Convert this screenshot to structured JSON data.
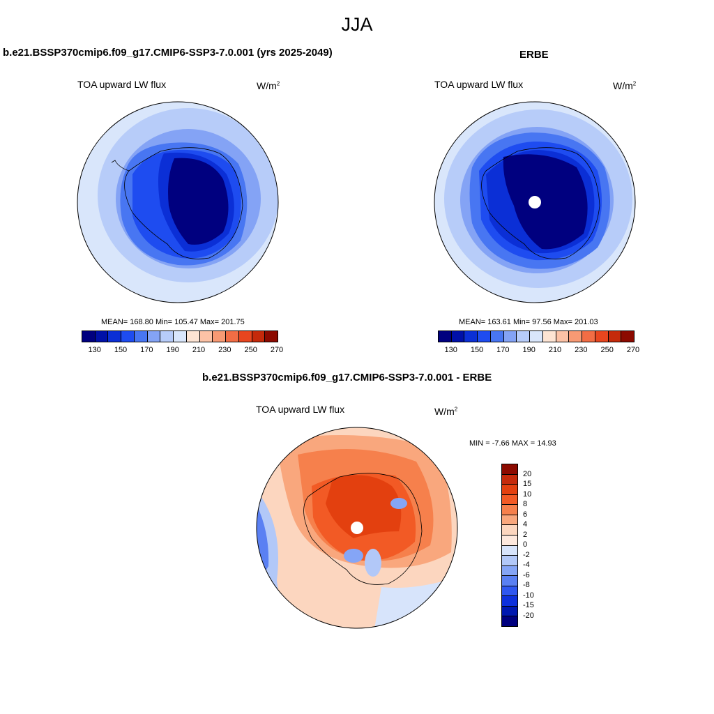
{
  "main_title": "JJA",
  "panels": [
    {
      "title": "b.e21.BSSP370cmip6.f09_g17.CMIP6-SSP3-7.0.001 (yrs 2025-2049)",
      "variable": "TOA upward LW flux",
      "units": "W/m",
      "units_sup": "2",
      "stats": "MEAN= 168.80  Min= 105.47  Max= 201.75"
    },
    {
      "title": "ERBE",
      "variable": "TOA upward LW flux",
      "units": "W/m",
      "units_sup": "2",
      "stats": "MEAN= 163.61  Min=  97.56  Max= 201.03"
    },
    {
      "title": "b.e21.BSSP370cmip6.f09_g17.CMIP6-SSP3-7.0.001 - ERBE",
      "variable": "TOA upward LW flux",
      "units": "W/m",
      "units_sup": "2",
      "stats": "MIN =  -7.66 MAX =  14.93"
    }
  ],
  "abs_colorbar": {
    "colors": [
      "#00007f",
      "#0010a8",
      "#0b2fd6",
      "#1e4cf0",
      "#4876f2",
      "#84a3f5",
      "#b7ccf9",
      "#d9e6fb",
      "#fde4d3",
      "#fcc2a6",
      "#f89a74",
      "#f26d45",
      "#e8461f",
      "#c52a0b",
      "#8c0a00"
    ],
    "labels": [
      "130",
      "150",
      "170",
      "190",
      "210",
      "230",
      "250",
      "270"
    ]
  },
  "diff_colorbar": {
    "colors": [
      "#8c0a00",
      "#c52a0b",
      "#e3400f",
      "#f25a25",
      "#f6804c",
      "#f9a77d",
      "#fcd6bf",
      "#fde8dd",
      "#d7e4fb",
      "#b2c8f8",
      "#85a5f6",
      "#5a80f3",
      "#2f57f0",
      "#0d30dc",
      "#0018b0",
      "#00007f"
    ],
    "labels": [
      "20",
      "15",
      "10",
      "8",
      "6",
      "4",
      "2",
      "0",
      "-2",
      "-4",
      "-6",
      "-8",
      "-10",
      "-15",
      "-20"
    ]
  }
}
